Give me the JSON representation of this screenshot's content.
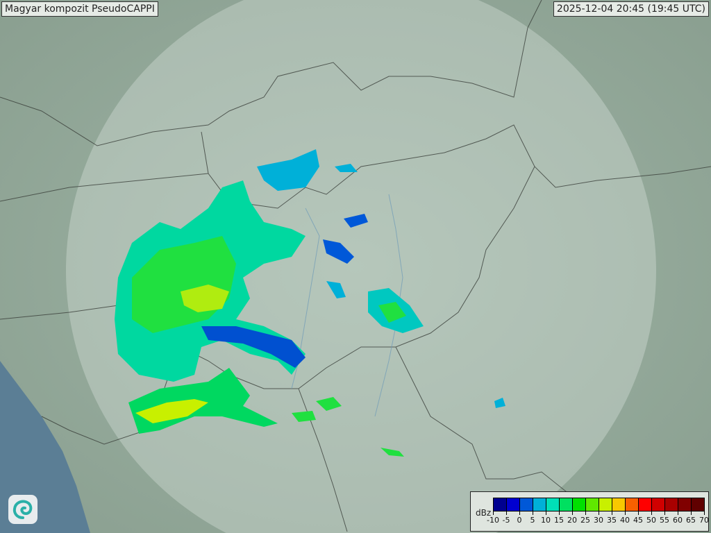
{
  "title": "Magyar kompozit  PseudoCAPPI",
  "timestamp": "2025-12-04 20:45 (19:45 UTC)",
  "legend": {
    "unit": "dBz",
    "ticks": [
      "-10",
      "-5",
      "0",
      "5",
      "10",
      "15",
      "20",
      "25",
      "30",
      "35",
      "40",
      "45",
      "50",
      "55",
      "60",
      "65",
      "70"
    ],
    "colors": [
      "#000090",
      "#0000d0",
      "#0058d8",
      "#00b0d8",
      "#00e0b8",
      "#00e060",
      "#00e000",
      "#60e800",
      "#c8f000",
      "#f8c800",
      "#f86000",
      "#ff0000",
      "#d00000",
      "#a80000",
      "#800000",
      "#600000"
    ]
  },
  "logo": {
    "icon": "swirl-logo-icon"
  },
  "colors": {
    "terrain": "#8fa596",
    "coverage": "#c8d6cc",
    "sea": "#5b7e95"
  }
}
